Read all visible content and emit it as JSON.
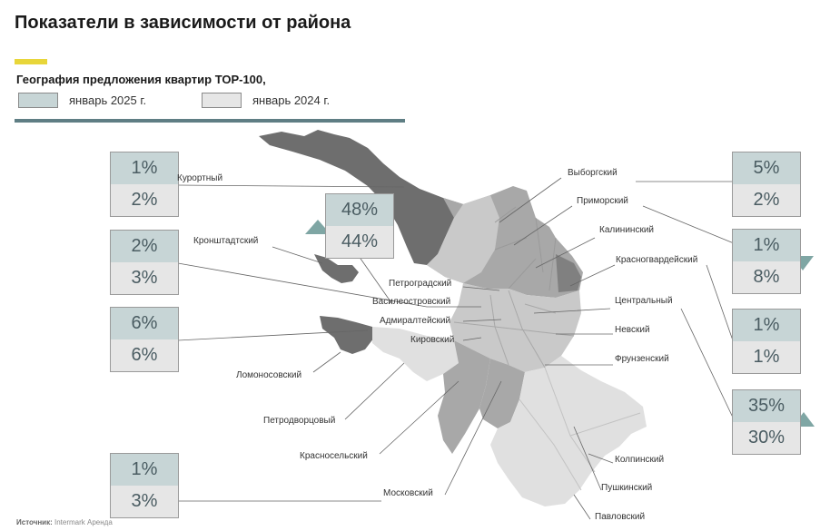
{
  "header": {
    "title": "Показатели в зависимости от района",
    "subtitle": "География предложения квартир ТОР-100,"
  },
  "legend": [
    {
      "label": "январь 2025 г.",
      "color": "#c7d5d6"
    },
    {
      "label": "январь 2024 г.",
      "color": "#e6e6e6"
    }
  ],
  "boxes": {
    "kurortny": {
      "top": "1%",
      "bottom": "2%"
    },
    "kronshtadtsky": {
      "top": "2%",
      "bottom": "3%"
    },
    "lomonosovsky": {
      "top": "6%",
      "bottom": "6%"
    },
    "moskovsky": {
      "top": "1%",
      "bottom": "3%"
    },
    "center": {
      "top": "48%",
      "bottom": "44%"
    },
    "vyborgsky": {
      "top": "5%",
      "bottom": "2%"
    },
    "primorsky": {
      "top": "1%",
      "bottom": "8%"
    },
    "tsentralny": {
      "top": "1%",
      "bottom": "1%"
    },
    "nevsky": {
      "top": "35%",
      "bottom": "30%"
    }
  },
  "districts": {
    "kurortny": "Курортный",
    "kronshtadtsky": "Кронштадтский",
    "petrogradsky": "Петроградский",
    "vasileostrovsky": "Василеостровский",
    "admiralteysky": "Адмиралтейский",
    "kirovsky": "Кировский",
    "lomonosovsky": "Ломоносовский",
    "petrodvortsovy": "Петродворцовый",
    "krasnoselsky": "Красносельский",
    "moskovsky": "Московский",
    "vyborgsky": "Выборгский",
    "primorsky": "Приморский",
    "kalininsky": "Калининский",
    "krasnogvardeysky": "Красногвардейский",
    "tsentralny": "Центральный",
    "nevsky": "Невский",
    "frunzensky": "Фрунзенский",
    "kolpinsky": "Колпинский",
    "pushkinsky": "Пушкинский",
    "pavlovsky": "Павловский"
  },
  "source": {
    "label": "Источник:",
    "value": "Intermark Аренда"
  },
  "colors": {
    "dark": "#6e6e6e",
    "mid": "#a8a8a8",
    "light": "#c9c9c9",
    "lighter": "#e0e0e0",
    "arrow": "#7fa6a4"
  }
}
